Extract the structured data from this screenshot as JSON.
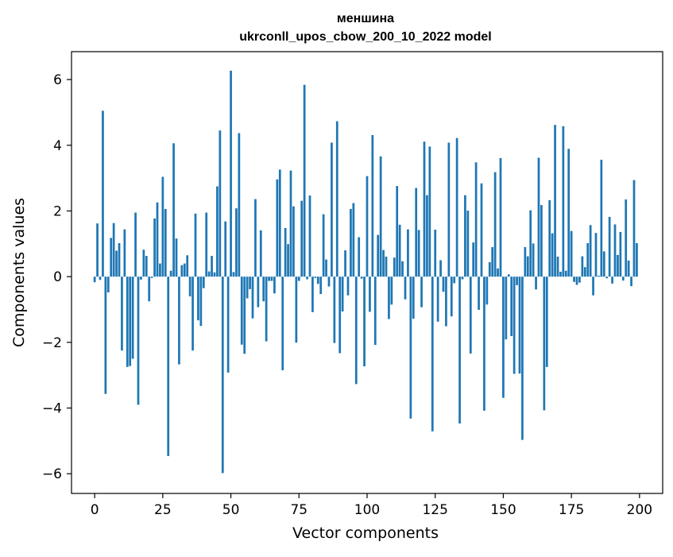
{
  "chart_data": {
    "type": "bar",
    "title": "меншина",
    "subtitle": "ukrconll_upos_cbow_200_10_2022 model",
    "xlabel": "Vector components",
    "ylabel": "Components values",
    "xlim": [
      -8.5,
      208.5
    ],
    "ylim": [
      -6.6,
      6.85
    ],
    "xticks": [
      0,
      25,
      50,
      75,
      100,
      125,
      150,
      175,
      200
    ],
    "yticks": [
      -6,
      -4,
      -2,
      0,
      2,
      4,
      6
    ],
    "xtick_labels": [
      "0",
      "25",
      "50",
      "75",
      "100",
      "125",
      "150",
      "175",
      "200"
    ],
    "ytick_labels": [
      "−6",
      "−4",
      "−2",
      "0",
      "2",
      "4",
      "6"
    ],
    "grid": false,
    "bar_color": "#1f77b4",
    "x": [
      0,
      1,
      2,
      3,
      4,
      5,
      6,
      7,
      8,
      9,
      10,
      11,
      12,
      13,
      14,
      15,
      16,
      17,
      18,
      19,
      20,
      21,
      22,
      23,
      24,
      25,
      26,
      27,
      28,
      29,
      30,
      31,
      32,
      33,
      34,
      35,
      36,
      37,
      38,
      39,
      40,
      41,
      42,
      43,
      44,
      45,
      46,
      47,
      48,
      49,
      50,
      51,
      52,
      53,
      54,
      55,
      56,
      57,
      58,
      59,
      60,
      61,
      62,
      63,
      64,
      65,
      66,
      67,
      68,
      69,
      70,
      71,
      72,
      73,
      74,
      75,
      76,
      77,
      78,
      79,
      80,
      81,
      82,
      83,
      84,
      85,
      86,
      87,
      88,
      89,
      90,
      91,
      92,
      93,
      94,
      95,
      96,
      97,
      98,
      99,
      100,
      101,
      102,
      103,
      104,
      105,
      106,
      107,
      108,
      109,
      110,
      111,
      112,
      113,
      114,
      115,
      116,
      117,
      118,
      119,
      120,
      121,
      122,
      123,
      124,
      125,
      126,
      127,
      128,
      129,
      130,
      131,
      132,
      133,
      134,
      135,
      136,
      137,
      138,
      139,
      140,
      141,
      142,
      143,
      144,
      145,
      146,
      147,
      148,
      149,
      150,
      151,
      152,
      153,
      154,
      155,
      156,
      157,
      158,
      159,
      160,
      161,
      162,
      163,
      164,
      165,
      166,
      167,
      168,
      169,
      170,
      171,
      172,
      173,
      174,
      175,
      176,
      177,
      178,
      179,
      180,
      181,
      182,
      183,
      184,
      185,
      186,
      187,
      188,
      189,
      190,
      191,
      192,
      193,
      194,
      195,
      196,
      197,
      198,
      199
    ],
    "values": [
      -0.17,
      1.62,
      -0.1,
      5.05,
      -3.57,
      -0.48,
      1.18,
      1.63,
      0.79,
      1.02,
      -2.25,
      1.44,
      -2.75,
      -2.72,
      -2.5,
      1.95,
      -3.9,
      -0.09,
      0.82,
      0.63,
      -0.75,
      -0.04,
      1.77,
      2.26,
      0.4,
      3.04,
      2.06,
      -5.46,
      0.18,
      4.06,
      1.16,
      -2.67,
      0.35,
      0.4,
      0.65,
      -0.6,
      -2.25,
      1.92,
      -1.33,
      -1.5,
      -0.35,
      1.95,
      0.16,
      0.63,
      0.13,
      2.75,
      4.45,
      -5.98,
      1.68,
      -2.92,
      6.27,
      0.14,
      2.08,
      4.37,
      -2.07,
      -2.35,
      -0.66,
      -0.38,
      -1.27,
      2.36,
      -0.93,
      1.41,
      -0.75,
      -1.97,
      -0.13,
      -0.13,
      -0.51,
      2.96,
      3.26,
      -2.85,
      1.48,
      0.99,
      3.23,
      2.14,
      -2.01,
      -0.13,
      2.31,
      5.84,
      -0.08,
      2.47,
      -1.08,
      -0.04,
      -0.22,
      -0.53,
      1.9,
      0.52,
      -0.3,
      4.08,
      -2.02,
      4.73,
      -2.33,
      -1.06,
      0.8,
      -0.57,
      2.06,
      2.24,
      -3.27,
      1.2,
      -0.06,
      -2.73,
      3.06,
      -1.07,
      4.31,
      -2.08,
      1.27,
      3.66,
      0.81,
      0.61,
      -1.29,
      -0.85,
      0.58,
      2.76,
      1.58,
      0.47,
      -0.69,
      1.44,
      -4.32,
      -1.28,
      2.7,
      1.42,
      -0.93,
      4.11,
      2.48,
      3.96,
      -4.71,
      1.43,
      -1.37,
      0.5,
      -0.46,
      -1.51,
      4.08,
      -1.21,
      -0.2,
      4.22,
      -4.47,
      -0.08,
      2.48,
      2.01,
      -2.34,
      1.04,
      3.48,
      -1.01,
      2.84,
      -4.08,
      -0.85,
      0.44,
      0.9,
      3.18,
      0.25,
      3.61,
      -3.69,
      -1.91,
      0.07,
      -1.81,
      -2.96,
      -0.26,
      -2.95,
      -4.97,
      0.9,
      0.62,
      2.02,
      1.01,
      -0.39,
      3.62,
      2.18,
      -4.07,
      -2.75,
      2.33,
      1.32,
      4.62,
      0.61,
      0.15,
      4.58,
      0.18,
      3.89,
      1.39,
      -0.16,
      -0.25,
      -0.18,
      0.62,
      0.29,
      1.02,
      1.57,
      -0.57,
      1.33,
      0.03,
      3.56,
      0.77,
      -0.05,
      1.82,
      -0.21,
      1.59,
      0.66,
      1.36,
      -0.12,
      2.35,
      0.49,
      -0.29,
      2.94,
      1.02
    ]
  }
}
